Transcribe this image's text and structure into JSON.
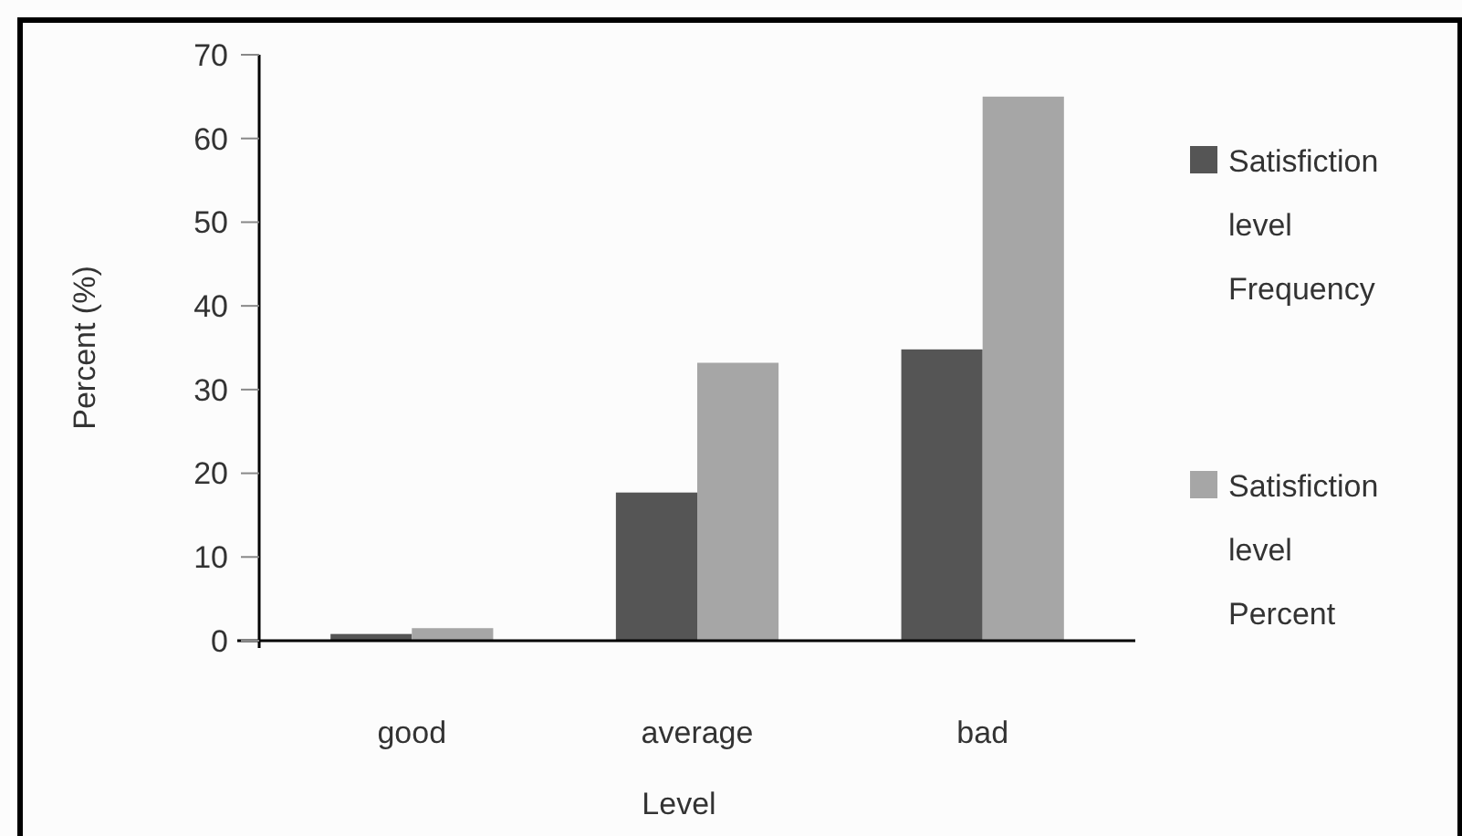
{
  "chart_data": {
    "type": "bar",
    "xlabel": "Level",
    "ylabel": "Percent (%)",
    "categories": [
      "good",
      "average",
      "bad"
    ],
    "series": [
      {
        "name": "Satisfiction level Frequency",
        "color": "#555555",
        "values": [
          0.8,
          17.7,
          34.8
        ]
      },
      {
        "name": "Satisfiction level Percent",
        "color": "#a6a6a6",
        "values": [
          1.5,
          33.2,
          65
        ]
      }
    ],
    "ylim": [
      0,
      70
    ],
    "yticks": [
      0,
      10,
      20,
      30,
      40,
      50,
      60,
      70
    ],
    "legend": "right",
    "grid": false
  }
}
